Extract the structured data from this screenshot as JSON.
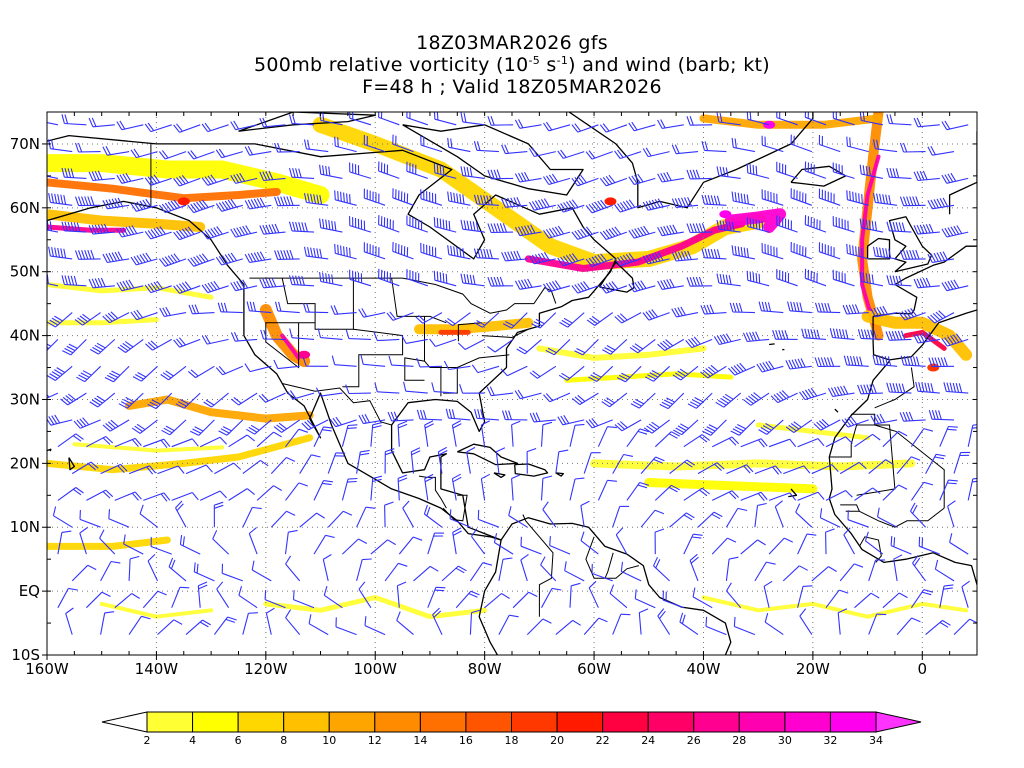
{
  "title": {
    "line1": "18Z03MAR2026 gfs",
    "line2_pre": "500mb relative vorticity (10",
    "line2_exp1": "-5",
    "line2_mid": " s",
    "line2_exp2": "-1",
    "line2_post": ") and wind (barb; kt)",
    "line3": "F=48 h ; Valid 18Z05MAR2026"
  },
  "map": {
    "projection": "lat-lon",
    "lon_range": [
      -160,
      10
    ],
    "lat_range": [
      -10,
      75
    ],
    "lat_labels": [
      "70N",
      "60N",
      "50N",
      "40N",
      "30N",
      "20N",
      "10N",
      "EQ",
      "10S"
    ],
    "lon_labels": [
      "160W",
      "140W",
      "120W",
      "100W",
      "80W",
      "60W",
      "40W",
      "20W",
      "0"
    ],
    "gridlines": "dotted",
    "barb_color": "#3333ff",
    "coastline_color": "#000000"
  },
  "colorbar": {
    "labels": [
      "2",
      "4",
      "6",
      "8",
      "10",
      "12",
      "14",
      "16",
      "18",
      "20",
      "22",
      "24",
      "26",
      "28",
      "30",
      "32",
      "34"
    ],
    "colors": [
      "#ffff33",
      "#ffff00",
      "#ffd700",
      "#ffc000",
      "#ffa500",
      "#ff8c00",
      "#ff7000",
      "#ff5500",
      "#ff3800",
      "#ff1a00",
      "#ff0040",
      "#ff0066",
      "#ff0090",
      "#ff00b0",
      "#ff00d0",
      "#ff00ee"
    ],
    "under_color": "#ffffff",
    "over_color": "#ff33ff"
  }
}
